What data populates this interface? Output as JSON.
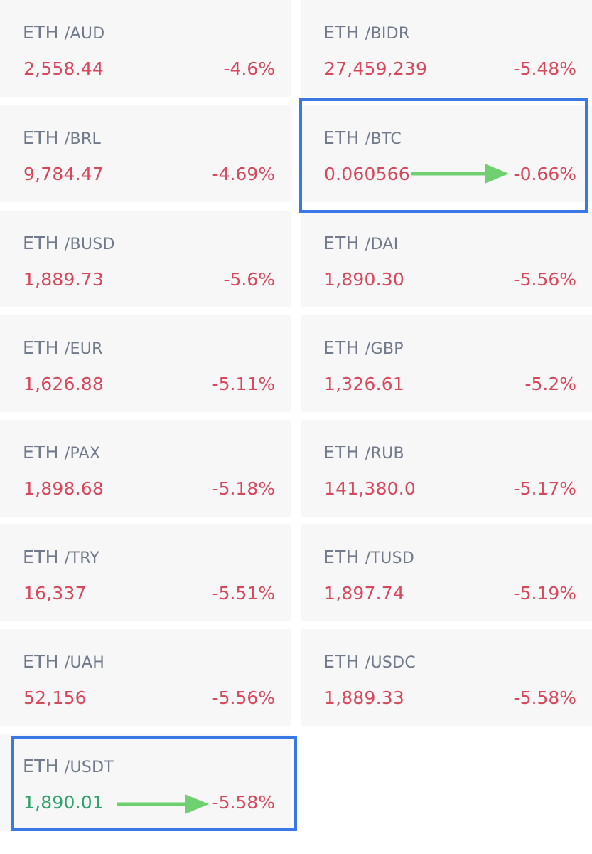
{
  "tickers": [
    {
      "base": "ETH",
      "quote": "/AUD",
      "price": "2,558.44",
      "change": "-4.6%"
    },
    {
      "base": "ETH",
      "quote": "/BIDR",
      "price": "27,459,239",
      "change": "-5.48%"
    },
    {
      "base": "ETH",
      "quote": "/BRL",
      "price": "9,784.47",
      "change": "-4.69%"
    },
    {
      "base": "ETH",
      "quote": "/BTC",
      "price": "0.060566",
      "change": "-0.66%"
    },
    {
      "base": "ETH",
      "quote": "/BUSD",
      "price": "1,889.73",
      "change": "-5.6%"
    },
    {
      "base": "ETH",
      "quote": "/DAI",
      "price": "1,890.30",
      "change": "-5.56%"
    },
    {
      "base": "ETH",
      "quote": "/EUR",
      "price": "1,626.88",
      "change": "-5.11%"
    },
    {
      "base": "ETH",
      "quote": "/GBP",
      "price": "1,326.61",
      "change": "-5.2%"
    },
    {
      "base": "ETH",
      "quote": "/PAX",
      "price": "1,898.68",
      "change": "-5.18%"
    },
    {
      "base": "ETH",
      "quote": "/RUB",
      "price": "141,380.0",
      "change": "-5.17%"
    },
    {
      "base": "ETH",
      "quote": "/TRY",
      "price": "16,337",
      "change": "-5.51%"
    },
    {
      "base": "ETH",
      "quote": "/TUSD",
      "price": "1,897.74",
      "change": "-5.19%"
    },
    {
      "base": "ETH",
      "quote": "/UAH",
      "price": "52,156",
      "change": "-5.56%"
    },
    {
      "base": "ETH",
      "quote": "/USDC",
      "price": "1,889.33",
      "change": "-5.58%"
    },
    {
      "base": "ETH",
      "quote": "/USDT",
      "price": "1,890.01",
      "change": "-5.58%"
    }
  ],
  "colors": {
    "negative": "#d9475b",
    "positive": "#2fa36b",
    "label": "#707a8a",
    "card_bg": "#f7f7f8",
    "highlight_border": "#3b78e7",
    "annotation_arrow": "#6fd06f"
  },
  "annotations": [
    {
      "type": "highlight-box",
      "target": "/BTC",
      "icon": "right-arrow-icon"
    },
    {
      "type": "highlight-box",
      "target": "/USDT",
      "icon": "right-arrow-icon"
    }
  ]
}
